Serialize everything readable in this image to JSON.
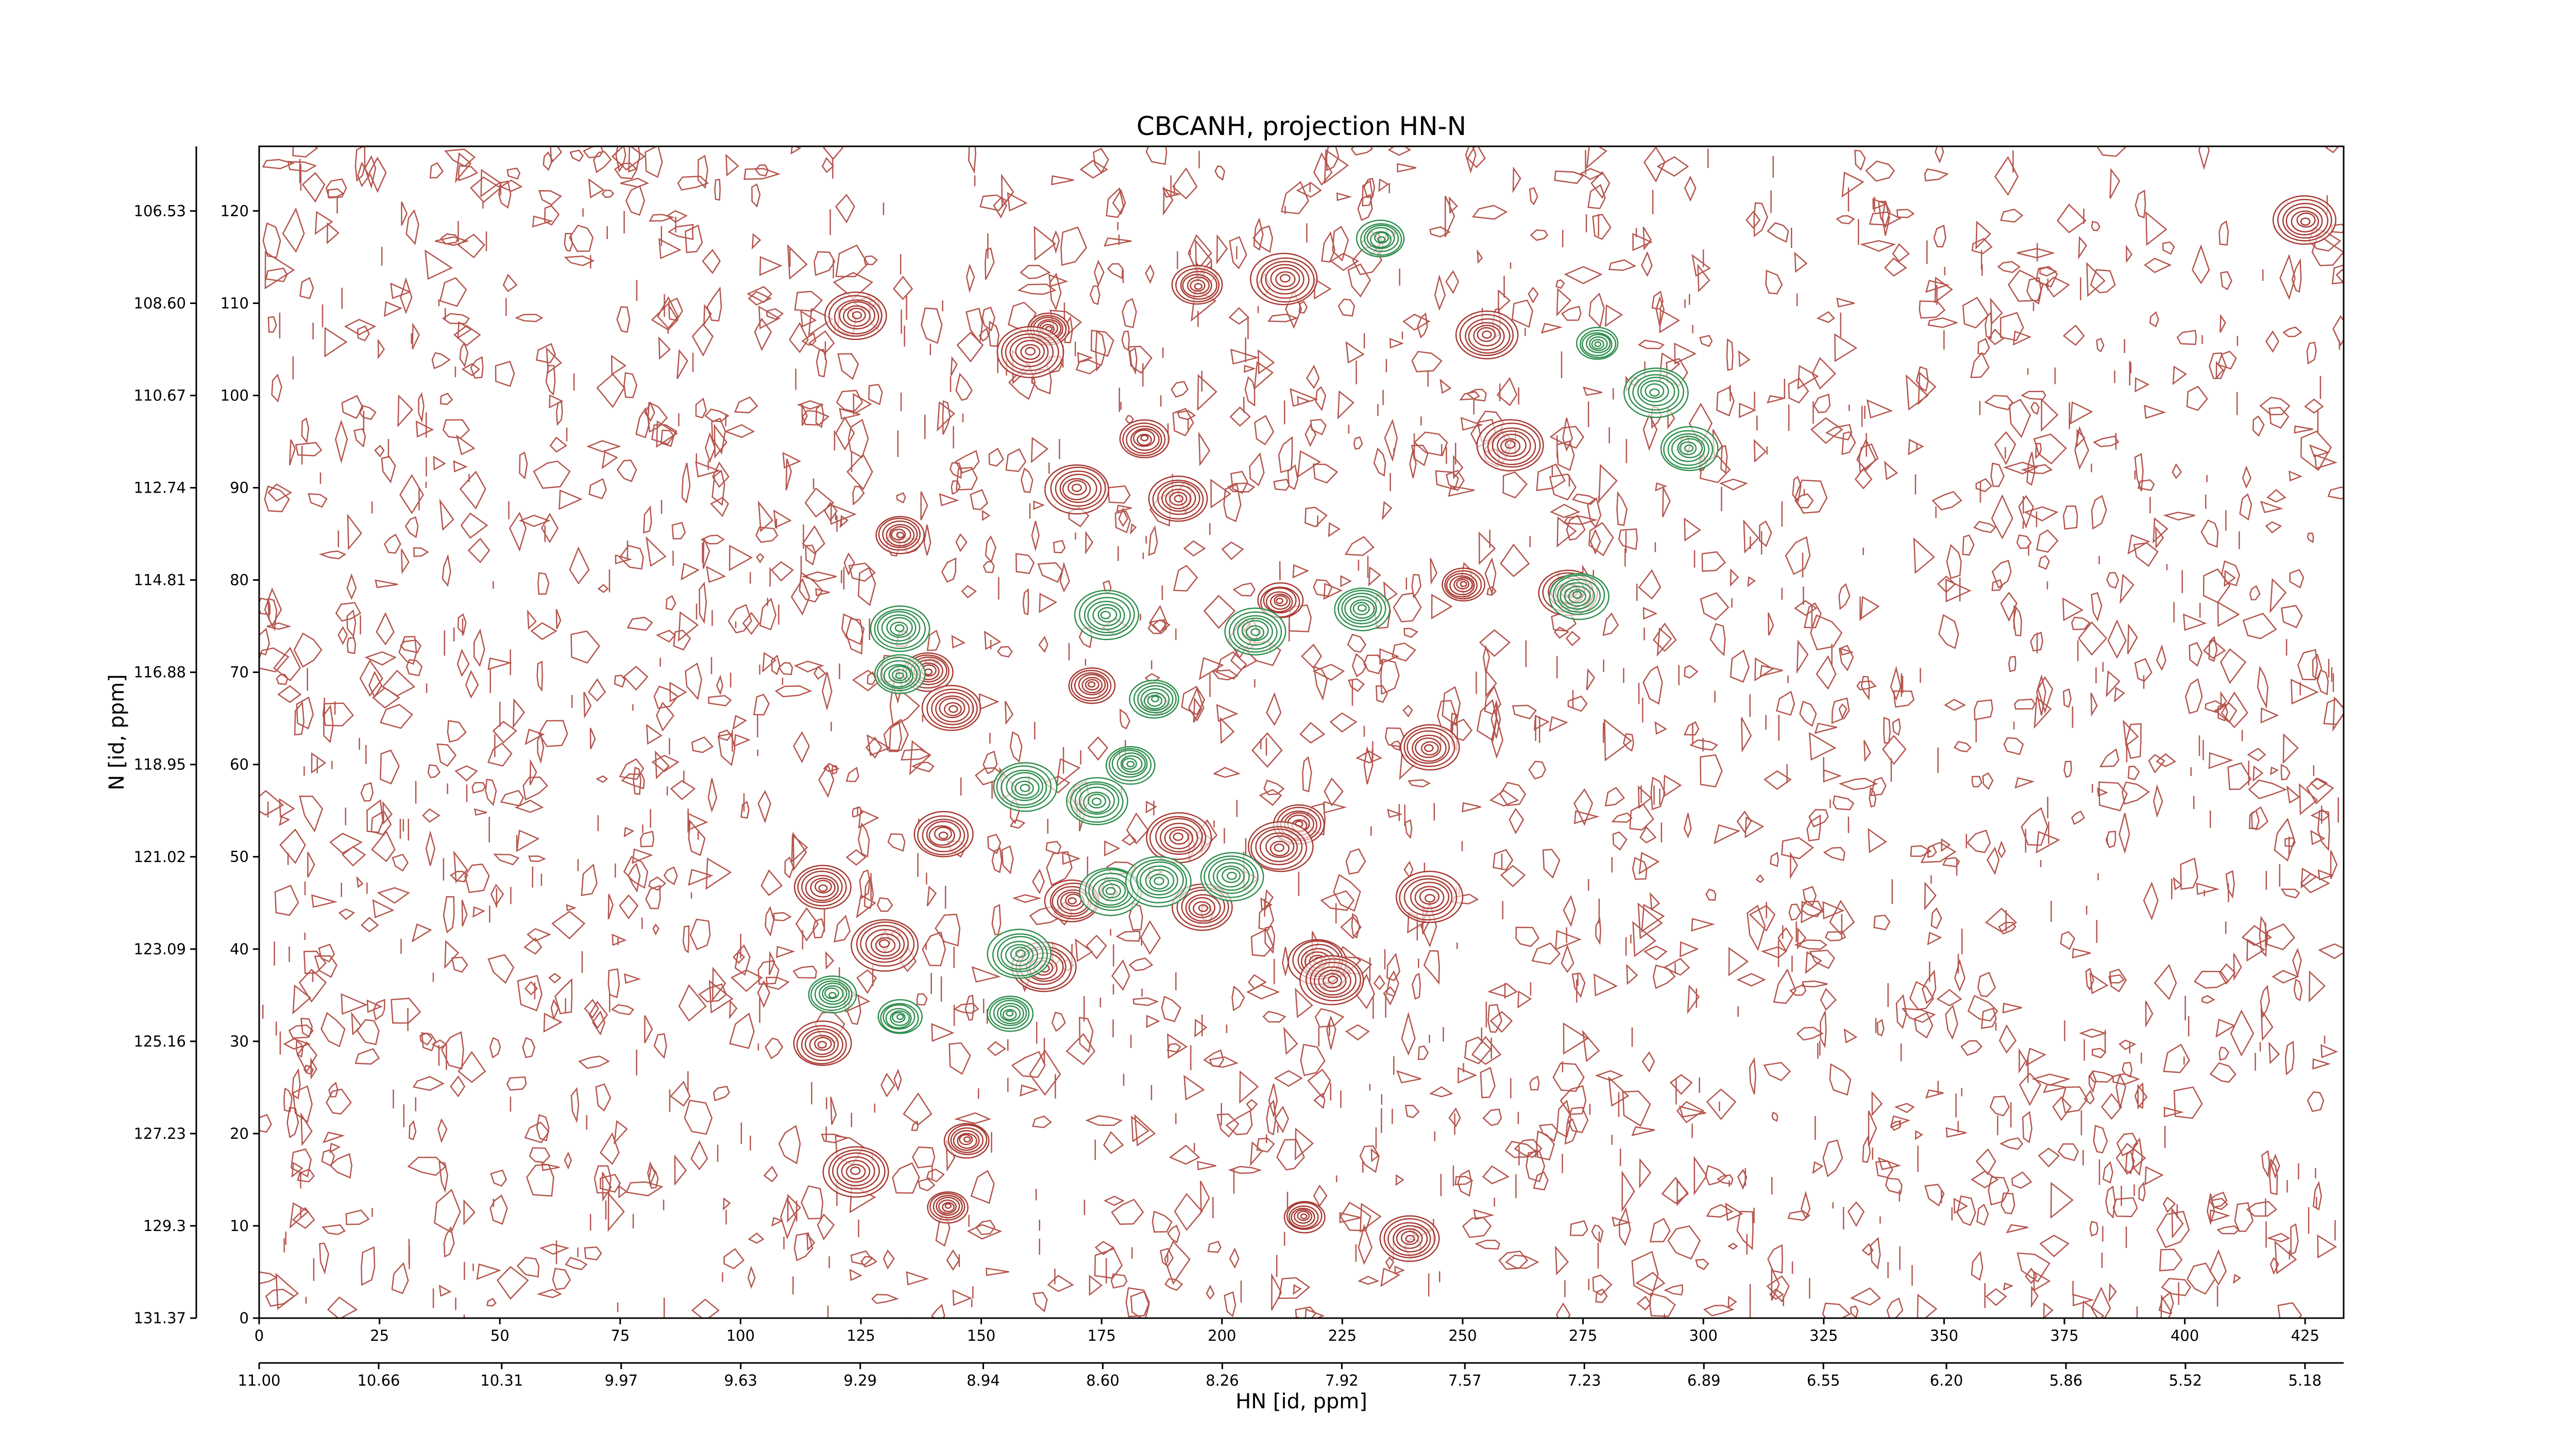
{
  "chart_data": {
    "type": "contour",
    "title": "CBCANH, projection HN-N",
    "xlabel": "HN [id, ppm]",
    "ylabel": "N [id, ppm]",
    "xlim": [
      0,
      433
    ],
    "ylim": [
      0,
      127
    ],
    "xticks": [
      0,
      25,
      50,
      75,
      100,
      125,
      150,
      175,
      200,
      225,
      250,
      275,
      300,
      325,
      350,
      375,
      400,
      425
    ],
    "yticks": [
      0,
      10,
      20,
      30,
      40,
      50,
      60,
      70,
      80,
      90,
      100,
      110,
      120
    ],
    "x2lim": [
      11.0,
      5.07
    ],
    "x2ticks": [
      {
        "value": 11.0,
        "label": "11.00"
      },
      {
        "value": 10.66,
        "label": "10.66"
      },
      {
        "value": 10.31,
        "label": "10.31"
      },
      {
        "value": 9.97,
        "label": "9.97"
      },
      {
        "value": 9.63,
        "label": "9.63"
      },
      {
        "value": 9.29,
        "label": "9.29"
      },
      {
        "value": 8.94,
        "label": "8.94"
      },
      {
        "value": 8.6,
        "label": "8.60"
      },
      {
        "value": 8.26,
        "label": "8.26"
      },
      {
        "value": 7.92,
        "label": "7.92"
      },
      {
        "value": 7.57,
        "label": "7.57"
      },
      {
        "value": 7.23,
        "label": "7.23"
      },
      {
        "value": 6.89,
        "label": "6.89"
      },
      {
        "value": 6.55,
        "label": "6.55"
      },
      {
        "value": 6.2,
        "label": "6.20"
      },
      {
        "value": 5.86,
        "label": "5.86"
      },
      {
        "value": 5.52,
        "label": "5.52"
      },
      {
        "value": 5.18,
        "label": "5.18"
      }
    ],
    "y2lim": [
      131.37,
      105.08
    ],
    "y2ticks": [
      131.37,
      129.3,
      {
        "value": 127.23,
        "label": "127.23"
      },
      125.16,
      123.09,
      121.02,
      118.95,
      116.88,
      114.81,
      112.74,
      110.67,
      {
        "value": 108.6,
        "label": "108.60"
      },
      106.53
    ],
    "series": [
      {
        "color": "#a83a32",
        "x": [
          124,
          164,
          160,
          195,
          213,
          255,
          425,
          184,
          170,
          191,
          133,
          250,
          272,
          212,
          139,
          144,
          173,
          243,
          142,
          117,
          191,
          216,
          212,
          169,
          196,
          243,
          130,
          220,
          223,
          163,
          117,
          124,
          147,
          143,
          217,
          239,
          260
        ],
        "y": [
          108.6,
          107.2,
          104.7,
          111.9,
          112.6,
          106.5,
          118.9,
          95.3,
          89.9,
          88.8,
          84.9,
          79.5,
          78.7,
          77.7,
          70.1,
          66.1,
          68.6,
          61.8,
          52.4,
          46.7,
          52.1,
          53.5,
          51,
          45.2,
          44.5,
          45.6,
          40.5,
          38.7,
          36.6,
          38,
          29.7,
          15.9,
          19.3,
          12.1,
          11,
          8.6,
          94.6
        ]
      },
      {
        "color": "#2f8f4e",
        "x": [
          233,
          278,
          290,
          297,
          133,
          133,
          176,
          207,
          229,
          274,
          186,
          181,
          174,
          159,
          202,
          177,
          187,
          158,
          133,
          156,
          119
        ],
        "y": [
          117,
          105.6,
          100.4,
          94.2,
          74.8,
          69.7,
          76.2,
          74.4,
          76.9,
          78.3,
          67,
          60,
          56,
          57.5,
          47.9,
          46.3,
          47.4,
          39.4,
          32.6,
          33,
          35.1
        ]
      }
    ]
  }
}
